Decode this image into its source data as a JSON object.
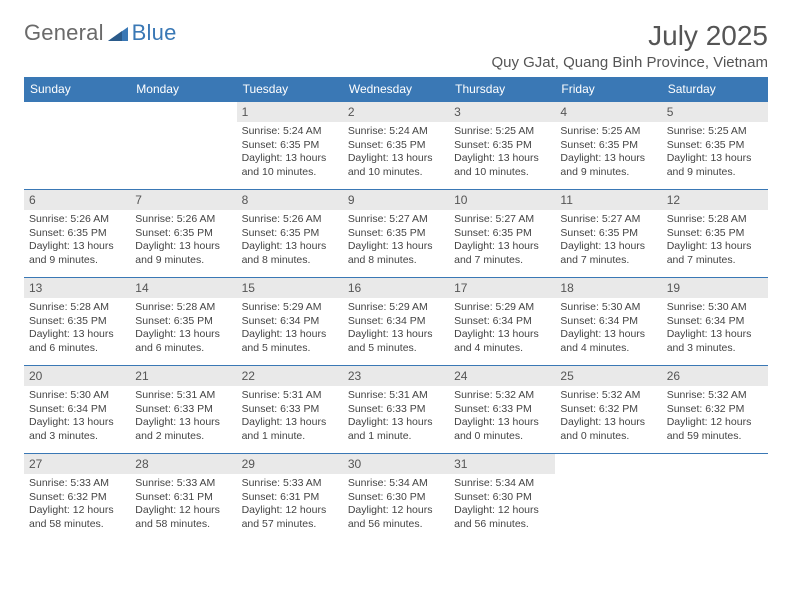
{
  "brand": {
    "part1": "General",
    "part2": "Blue"
  },
  "title": "July 2025",
  "location": "Quy GJat, Quang Binh Province, Vietnam",
  "weekdays": [
    "Sunday",
    "Monday",
    "Tuesday",
    "Wednesday",
    "Thursday",
    "Friday",
    "Saturday"
  ],
  "colors": {
    "header_bg": "#3a78b5",
    "header_text": "#ffffff",
    "daynum_bg": "#e9e9e9",
    "border": "#3a78b5",
    "text": "#444444",
    "title": "#555555"
  },
  "grid": [
    [
      null,
      null,
      {
        "n": "1",
        "sunrise": "5:24 AM",
        "sunset": "6:35 PM",
        "daylight": "13 hours and 10 minutes."
      },
      {
        "n": "2",
        "sunrise": "5:24 AM",
        "sunset": "6:35 PM",
        "daylight": "13 hours and 10 minutes."
      },
      {
        "n": "3",
        "sunrise": "5:25 AM",
        "sunset": "6:35 PM",
        "daylight": "13 hours and 10 minutes."
      },
      {
        "n": "4",
        "sunrise": "5:25 AM",
        "sunset": "6:35 PM",
        "daylight": "13 hours and 9 minutes."
      },
      {
        "n": "5",
        "sunrise": "5:25 AM",
        "sunset": "6:35 PM",
        "daylight": "13 hours and 9 minutes."
      }
    ],
    [
      {
        "n": "6",
        "sunrise": "5:26 AM",
        "sunset": "6:35 PM",
        "daylight": "13 hours and 9 minutes."
      },
      {
        "n": "7",
        "sunrise": "5:26 AM",
        "sunset": "6:35 PM",
        "daylight": "13 hours and 9 minutes."
      },
      {
        "n": "8",
        "sunrise": "5:26 AM",
        "sunset": "6:35 PM",
        "daylight": "13 hours and 8 minutes."
      },
      {
        "n": "9",
        "sunrise": "5:27 AM",
        "sunset": "6:35 PM",
        "daylight": "13 hours and 8 minutes."
      },
      {
        "n": "10",
        "sunrise": "5:27 AM",
        "sunset": "6:35 PM",
        "daylight": "13 hours and 7 minutes."
      },
      {
        "n": "11",
        "sunrise": "5:27 AM",
        "sunset": "6:35 PM",
        "daylight": "13 hours and 7 minutes."
      },
      {
        "n": "12",
        "sunrise": "5:28 AM",
        "sunset": "6:35 PM",
        "daylight": "13 hours and 7 minutes."
      }
    ],
    [
      {
        "n": "13",
        "sunrise": "5:28 AM",
        "sunset": "6:35 PM",
        "daylight": "13 hours and 6 minutes."
      },
      {
        "n": "14",
        "sunrise": "5:28 AM",
        "sunset": "6:35 PM",
        "daylight": "13 hours and 6 minutes."
      },
      {
        "n": "15",
        "sunrise": "5:29 AM",
        "sunset": "6:34 PM",
        "daylight": "13 hours and 5 minutes."
      },
      {
        "n": "16",
        "sunrise": "5:29 AM",
        "sunset": "6:34 PM",
        "daylight": "13 hours and 5 minutes."
      },
      {
        "n": "17",
        "sunrise": "5:29 AM",
        "sunset": "6:34 PM",
        "daylight": "13 hours and 4 minutes."
      },
      {
        "n": "18",
        "sunrise": "5:30 AM",
        "sunset": "6:34 PM",
        "daylight": "13 hours and 4 minutes."
      },
      {
        "n": "19",
        "sunrise": "5:30 AM",
        "sunset": "6:34 PM",
        "daylight": "13 hours and 3 minutes."
      }
    ],
    [
      {
        "n": "20",
        "sunrise": "5:30 AM",
        "sunset": "6:34 PM",
        "daylight": "13 hours and 3 minutes."
      },
      {
        "n": "21",
        "sunrise": "5:31 AM",
        "sunset": "6:33 PM",
        "daylight": "13 hours and 2 minutes."
      },
      {
        "n": "22",
        "sunrise": "5:31 AM",
        "sunset": "6:33 PM",
        "daylight": "13 hours and 1 minute."
      },
      {
        "n": "23",
        "sunrise": "5:31 AM",
        "sunset": "6:33 PM",
        "daylight": "13 hours and 1 minute."
      },
      {
        "n": "24",
        "sunrise": "5:32 AM",
        "sunset": "6:33 PM",
        "daylight": "13 hours and 0 minutes."
      },
      {
        "n": "25",
        "sunrise": "5:32 AM",
        "sunset": "6:32 PM",
        "daylight": "13 hours and 0 minutes."
      },
      {
        "n": "26",
        "sunrise": "5:32 AM",
        "sunset": "6:32 PM",
        "daylight": "12 hours and 59 minutes."
      }
    ],
    [
      {
        "n": "27",
        "sunrise": "5:33 AM",
        "sunset": "6:32 PM",
        "daylight": "12 hours and 58 minutes."
      },
      {
        "n": "28",
        "sunrise": "5:33 AM",
        "sunset": "6:31 PM",
        "daylight": "12 hours and 58 minutes."
      },
      {
        "n": "29",
        "sunrise": "5:33 AM",
        "sunset": "6:31 PM",
        "daylight": "12 hours and 57 minutes."
      },
      {
        "n": "30",
        "sunrise": "5:34 AM",
        "sunset": "6:30 PM",
        "daylight": "12 hours and 56 minutes."
      },
      {
        "n": "31",
        "sunrise": "5:34 AM",
        "sunset": "6:30 PM",
        "daylight": "12 hours and 56 minutes."
      },
      null,
      null
    ]
  ],
  "labels": {
    "sunrise": "Sunrise:",
    "sunset": "Sunset:",
    "daylight": "Daylight:"
  }
}
